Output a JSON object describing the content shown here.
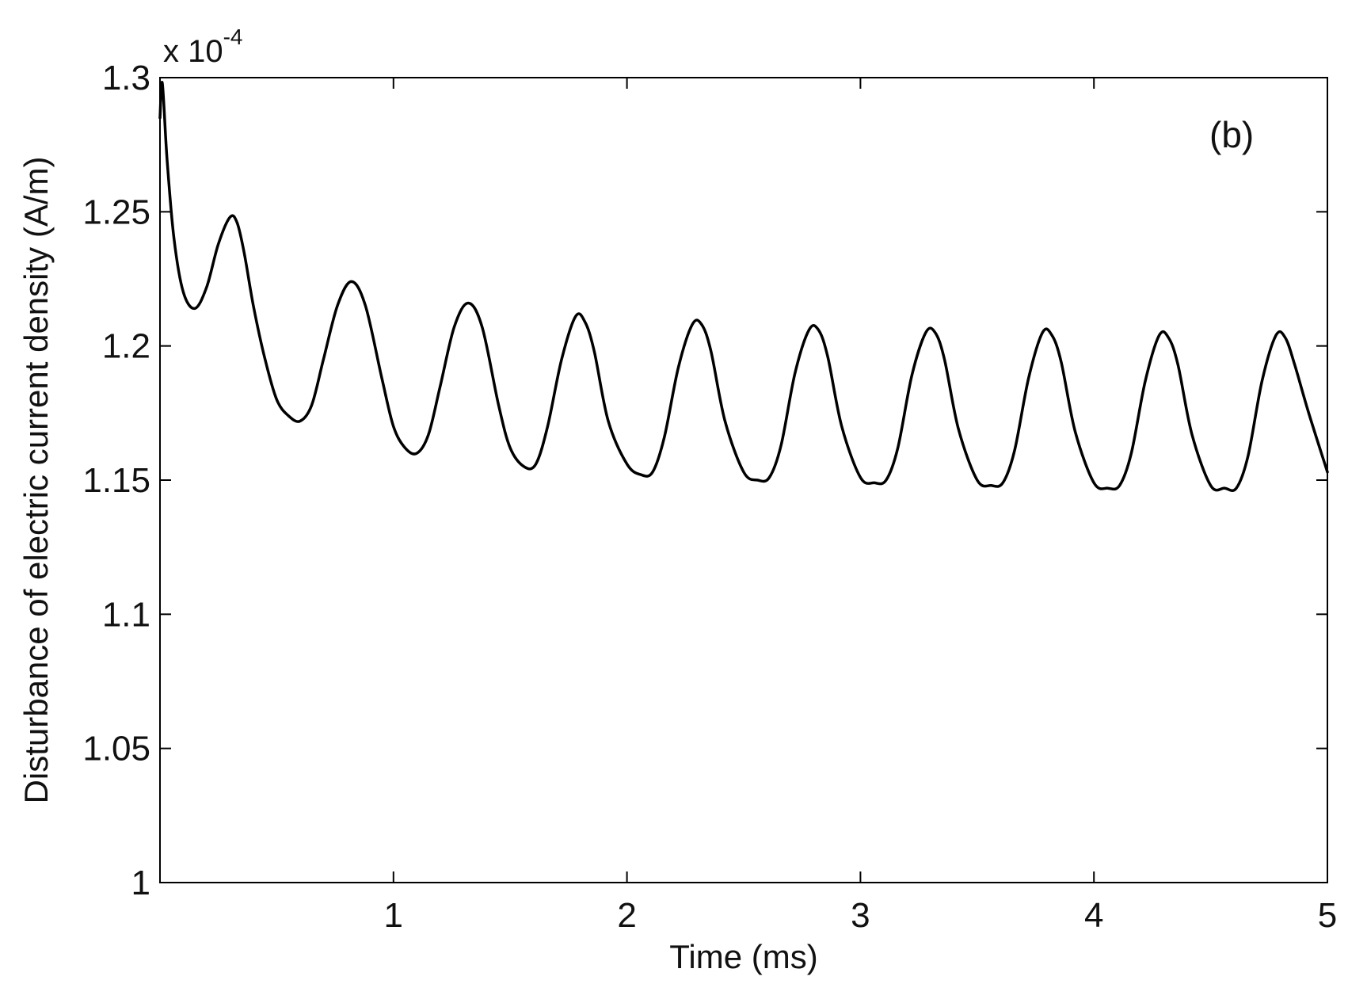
{
  "chart_data": {
    "type": "line",
    "title": "",
    "xlabel": "Time (ms)",
    "ylabel": "Disturbance of electric current density (A/m)",
    "y_multiplier_base": "x 10",
    "y_multiplier_exponent": "-4",
    "annotation": "(b)",
    "xlim": [
      0,
      5
    ],
    "ylim": [
      1.0,
      1.3
    ],
    "x_ticks": [
      1,
      2,
      3,
      4,
      5
    ],
    "x_tick_labels": [
      "1",
      "2",
      "3",
      "4",
      "5"
    ],
    "y_ticks": [
      1.0,
      1.05,
      1.1,
      1.15,
      1.2,
      1.25,
      1.3
    ],
    "y_tick_labels": [
      "1",
      "1.05",
      "1.1",
      "1.15",
      "1.2",
      "1.25",
      "1.3"
    ],
    "grid": false,
    "series": [
      {
        "color": "#000000",
        "x": [
          0.0,
          0.01,
          0.03,
          0.06,
          0.1,
          0.15,
          0.2,
          0.25,
          0.3,
          0.33,
          0.36,
          0.4,
          0.45,
          0.5,
          0.55,
          0.6,
          0.65,
          0.7,
          0.76,
          0.82,
          0.88,
          0.95,
          1.0,
          1.05,
          1.1,
          1.15,
          1.2,
          1.26,
          1.32,
          1.38,
          1.45,
          1.5,
          1.56,
          1.61,
          1.66,
          1.72,
          1.78,
          1.82,
          1.86,
          1.92,
          2.0,
          2.06,
          2.11,
          2.16,
          2.22,
          2.28,
          2.32,
          2.36,
          2.42,
          2.5,
          2.56,
          2.61,
          2.66,
          2.72,
          2.78,
          2.82,
          2.86,
          2.92,
          3.0,
          3.06,
          3.11,
          3.16,
          3.22,
          3.28,
          3.32,
          3.36,
          3.42,
          3.5,
          3.56,
          3.61,
          3.66,
          3.72,
          3.78,
          3.82,
          3.86,
          3.92,
          4.0,
          4.06,
          4.11,
          4.16,
          4.22,
          4.28,
          4.32,
          4.36,
          4.42,
          4.5,
          4.56,
          4.61,
          4.66,
          4.72,
          4.78,
          4.82,
          4.86,
          4.92,
          5.0
        ],
        "y": [
          1.285,
          1.298,
          1.27,
          1.24,
          1.22,
          1.214,
          1.222,
          1.238,
          1.248,
          1.246,
          1.235,
          1.215,
          1.195,
          1.18,
          1.174,
          1.172,
          1.178,
          1.195,
          1.215,
          1.224,
          1.215,
          1.188,
          1.17,
          1.162,
          1.16,
          1.167,
          1.185,
          1.207,
          1.216,
          1.207,
          1.178,
          1.162,
          1.155,
          1.156,
          1.17,
          1.195,
          1.211,
          1.209,
          1.198,
          1.172,
          1.156,
          1.152,
          1.153,
          1.166,
          1.192,
          1.208,
          1.208,
          1.198,
          1.172,
          1.153,
          1.15,
          1.151,
          1.163,
          1.19,
          1.206,
          1.206,
          1.196,
          1.17,
          1.151,
          1.149,
          1.15,
          1.162,
          1.189,
          1.205,
          1.205,
          1.195,
          1.169,
          1.15,
          1.148,
          1.149,
          1.161,
          1.188,
          1.205,
          1.204,
          1.194,
          1.168,
          1.149,
          1.147,
          1.148,
          1.16,
          1.187,
          1.204,
          1.203,
          1.193,
          1.167,
          1.148,
          1.147,
          1.147,
          1.159,
          1.187,
          1.204,
          1.203,
          1.193,
          1.175,
          1.153
        ]
      }
    ]
  }
}
